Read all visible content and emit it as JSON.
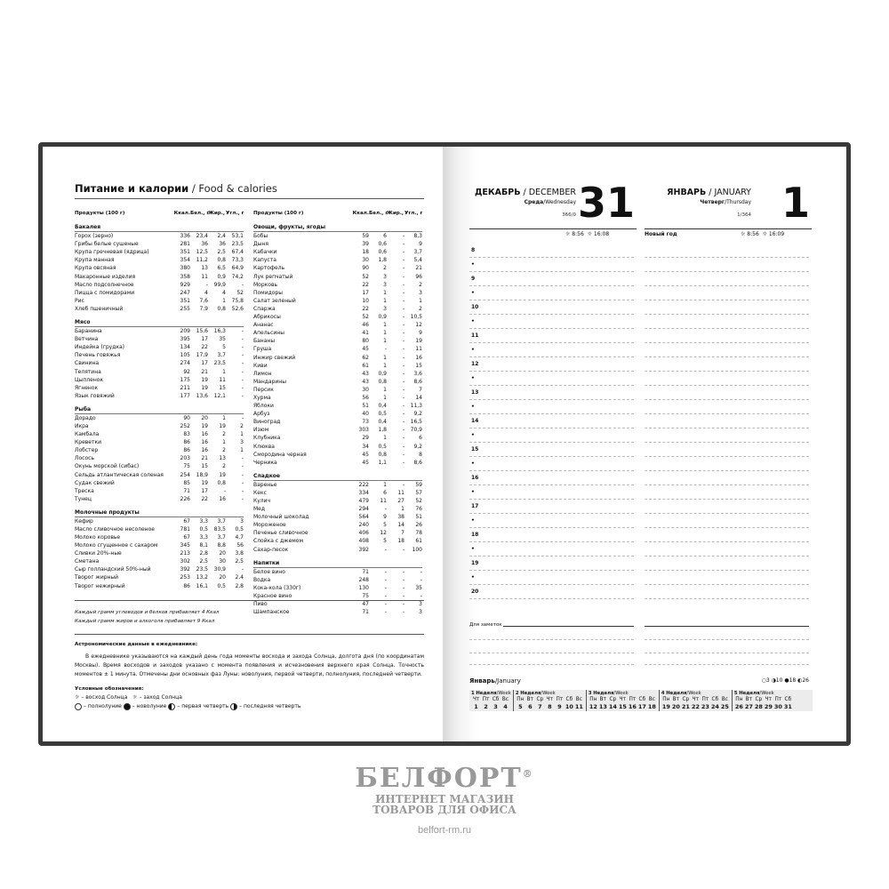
{
  "left": {
    "title_ru": "Питание и калории",
    "title_en": "/ Food & calories",
    "headers": [
      "Продукты (100 г)",
      "Ккал.",
      "Бел., г",
      "Жир., г",
      "Угл., г"
    ],
    "col1": [
      {
        "name": "Бакалея",
        "rows": [
          [
            "Горох (зерно)",
            "336",
            "23,4",
            "2,4",
            "53,1"
          ],
          [
            "Грибы белые сушеные",
            "281",
            "36",
            "36",
            "23,5"
          ],
          [
            "Крупа гречневая (ядрица)",
            "351",
            "12,5",
            "2,5",
            "67,4"
          ],
          [
            "Крупа манная",
            "354",
            "11,2",
            "0,8",
            "73,3"
          ],
          [
            "Крупа овсяная",
            "380",
            "13",
            "6,5",
            "64,9"
          ],
          [
            "Макаронные изделия",
            "358",
            "11",
            "0,9",
            "74,2"
          ],
          [
            "Масло подсолнечное",
            "929",
            "-",
            "99,9",
            "-"
          ],
          [
            "Пицца с помидорами",
            "247",
            "4",
            "4",
            "52"
          ],
          [
            "Рис",
            "351",
            "7,6",
            "1",
            "75,8"
          ],
          [
            "Хлеб пшеничный",
            "255",
            "7,9",
            "0,8",
            "52,6"
          ]
        ]
      },
      {
        "name": "Мясо",
        "rows": [
          [
            "Баранина",
            "209",
            "15,6",
            "16,3",
            "-"
          ],
          [
            "Ветчина",
            "395",
            "17",
            "35",
            "-"
          ],
          [
            "Индейка (грудка)",
            "134",
            "22",
            "5",
            "-"
          ],
          [
            "Печень говяжья",
            "105",
            "17,9",
            "3,7",
            "-"
          ],
          [
            "Свинина",
            "274",
            "17",
            "23,5",
            "-"
          ],
          [
            "Телятина",
            "92",
            "21",
            "1",
            "-"
          ],
          [
            "Цыпленок",
            "175",
            "19",
            "11",
            "-"
          ],
          [
            "Ягненок",
            "211",
            "19",
            "15",
            "-"
          ],
          [
            "Язык говяжий",
            "177",
            "13,6",
            "12,1",
            "-"
          ]
        ]
      },
      {
        "name": "Рыба",
        "rows": [
          [
            "Дорадо",
            "90",
            "20",
            "1",
            "-"
          ],
          [
            "Икра",
            "252",
            "19",
            "19",
            "2"
          ],
          [
            "Камбала",
            "83",
            "16",
            "2",
            "1"
          ],
          [
            "Креветки",
            "86",
            "16",
            "1",
            "3"
          ],
          [
            "Лобстер",
            "86",
            "16",
            "2",
            "1"
          ],
          [
            "Лосось",
            "203",
            "21",
            "13",
            "-"
          ],
          [
            "Окунь морской (сибас)",
            "75",
            "15",
            "2",
            "-"
          ],
          [
            "Сельдь атлантическая соленая",
            "254",
            "18,9",
            "19",
            "-"
          ],
          [
            "Судак свежий",
            "85",
            "19",
            "0,8",
            "-"
          ],
          [
            "Треска",
            "71",
            "17",
            "-",
            "-"
          ],
          [
            "Тунец",
            "226",
            "22",
            "16",
            "-"
          ]
        ]
      },
      {
        "name": "Молочные продукты",
        "rows": [
          [
            "Кефир",
            "67",
            "3,3",
            "3,7",
            "3"
          ],
          [
            "Масло сливочное несоленое",
            "781",
            "0,5",
            "83,5",
            "0,5"
          ],
          [
            "Молоко коровье",
            "67",
            "3,3",
            "3,7",
            "4,7"
          ],
          [
            "Молоко сгущенное с сахаром",
            "345",
            "8,1",
            "8,8",
            "56"
          ],
          [
            "Сливки 20%-ные",
            "213",
            "2,8",
            "20",
            "3,8"
          ],
          [
            "Сметана",
            "302",
            "2,5",
            "30",
            "2,5"
          ],
          [
            "Сыр голландский 50%-ный",
            "392",
            "23,5",
            "30,9",
            "-"
          ],
          [
            "Творог жирный",
            "253",
            "13,2",
            "20",
            "2,4"
          ],
          [
            "Творог нежирный",
            "86",
            "16,1",
            "0,5",
            "2,8"
          ]
        ]
      }
    ],
    "col2": [
      {
        "name": "Овощи, фрукты, ягоды",
        "rows": [
          [
            "Бобы",
            "59",
            "6",
            "-",
            "8,3"
          ],
          [
            "Дыня",
            "39",
            "0,6",
            "-",
            "9"
          ],
          [
            "Кабачки",
            "18",
            "0,6",
            "-",
            "3,7"
          ],
          [
            "Капуста",
            "30",
            "1,8",
            "-",
            "5,4"
          ],
          [
            "Картофель",
            "90",
            "2",
            "-",
            "21"
          ],
          [
            "Лук репчатый",
            "52",
            "3",
            "-",
            "96"
          ],
          [
            "Морковь",
            "22",
            "3",
            "-",
            "2"
          ],
          [
            "Помидоры",
            "17",
            "1",
            "-",
            "3"
          ],
          [
            "Салат зеленый",
            "10",
            "1",
            "-",
            "1"
          ],
          [
            "Спаржа",
            "22",
            "3",
            "-",
            "2"
          ],
          [
            "Абрикосы",
            "52",
            "0,9",
            "-",
            "10,5"
          ],
          [
            "Ананас",
            "46",
            "1",
            "-",
            "12"
          ],
          [
            "Апельсины",
            "41",
            "1",
            "-",
            "9"
          ],
          [
            "Бананы",
            "80",
            "1",
            "-",
            "19"
          ],
          [
            "Груша",
            "45",
            "-",
            "-",
            "11"
          ],
          [
            "Инжир свежий",
            "62",
            "1",
            "-",
            "16"
          ],
          [
            "Киви",
            "61",
            "1",
            "-",
            "15"
          ],
          [
            "Лимон",
            "43",
            "0,9",
            "-",
            "3,6"
          ],
          [
            "Мандарины",
            "43",
            "0,8",
            "-",
            "8,6"
          ],
          [
            "Персик",
            "30",
            "1",
            "-",
            "7"
          ],
          [
            "Хурма",
            "56",
            "1",
            "-",
            "14"
          ],
          [
            "Яблоки",
            "51",
            "0,4",
            "-",
            "11,3"
          ],
          [
            "Арбуз",
            "40",
            "0,5",
            "-",
            "9,2"
          ],
          [
            "Виноград",
            "73",
            "0,4",
            "-",
            "16,5"
          ],
          [
            "Изюм",
            "303",
            "1,8",
            "-",
            "70,9"
          ],
          [
            "Клубника",
            "29",
            "1",
            "-",
            "6"
          ],
          [
            "Клюква",
            "34",
            "0,5",
            "-",
            "9,2"
          ],
          [
            "Смородина черная",
            "45",
            "0,8",
            "-",
            "8"
          ],
          [
            "Черника",
            "45",
            "1,1",
            "-",
            "8,6"
          ]
        ]
      },
      {
        "name": "Сладкое",
        "rows": [
          [
            "Варенье",
            "222",
            "1",
            "-",
            "59"
          ],
          [
            "Кекс",
            "334",
            "6",
            "11",
            "57"
          ],
          [
            "Кулич",
            "479",
            "11",
            "27",
            "52"
          ],
          [
            "Мед",
            "294",
            "-",
            "1",
            "76"
          ],
          [
            "Молочный шоколад",
            "564",
            "9",
            "38",
            "51"
          ],
          [
            "Мороженое",
            "240",
            "5",
            "14",
            "26"
          ],
          [
            "Печенье сливочное",
            "406",
            "12",
            "7",
            "78"
          ],
          [
            "Слойка с джемом",
            "408",
            "5",
            "18",
            "61"
          ],
          [
            "Сахар-песок",
            "392",
            "-",
            "-",
            "100"
          ]
        ]
      },
      {
        "name": "Напитки",
        "rows": [
          [
            "Белое вино",
            "71",
            "-",
            "-",
            "-"
          ],
          [
            "Водка",
            "248",
            "-",
            "-",
            "-"
          ],
          [
            "Кока-кола (330г)",
            "130",
            "-",
            "-",
            "35"
          ],
          [
            "Красное вино",
            "75",
            "-",
            "-",
            "-"
          ],
          [
            "Пиво",
            "47",
            "-",
            "-",
            "3"
          ],
          [
            "Шампанское",
            "71",
            "-",
            "-",
            "3"
          ]
        ]
      }
    ],
    "foot1": "Каждый грамм углеводов и белков прибавляет 4 Ккал",
    "foot2": "Каждый грамм жиров и алкоголя прибавляет 9 Ккал",
    "astro_title": "Астрономические данные в ежедневнике:",
    "astro_text": "В ежедневнике указываются на каждый день года моменты восхода и захода Солнца, долгота дня (по координатам Москвы). Время восходов и заходов указано с момента появления и исчезновения верхнего края Солнца. Точность моментов ± 1 минута. Отмечены дни основных фаз Луны: новолуния, первой четверти, полнолуния, последней четверти.",
    "legend_title": "Условные обозначения:",
    "sunrise": "– восход Солнца",
    "sunset": "– заход Солнца",
    "full": "– полнолуние",
    "new": "– новолуние",
    "first": "– первая четверть",
    "last": "– последняя четверть"
  },
  "right": {
    "day1": {
      "month_ru": "ДЕКАБРЬ",
      "month_en": "/ DECEMBER",
      "wd_ru": "Среда",
      "wd_en": "/Wednesday",
      "count": "366/0",
      "num": "31",
      "sunrise": "8:56",
      "sunset": "16:08",
      "holiday": ""
    },
    "day2": {
      "month_ru": "ЯНВАРЬ",
      "month_en": "/ JANUARY",
      "wd_ru": "Четверг",
      "wd_en": "/Thursday",
      "count": "1/364",
      "num": "1",
      "sunrise": "8:56",
      "sunset": "16:09",
      "holiday": "Новый год"
    },
    "hours": [
      "8",
      "9",
      "10",
      "11",
      "12",
      "13",
      "14",
      "15",
      "16",
      "17",
      "18",
      "19",
      "20"
    ],
    "notes": "Для заметок",
    "cal_ru": "Январь",
    "cal_en": "/January",
    "phases": "○3 ◑10 ●18 ◐26",
    "week_label": "Неделя",
    "week_en": "/Week",
    "weeks": [
      {
        "n": "1",
        "days": [
          [
            "Чт",
            "1"
          ],
          [
            "Пт",
            "2"
          ],
          [
            "Сб",
            "3"
          ],
          [
            "Вс",
            "4"
          ]
        ]
      },
      {
        "n": "2",
        "days": [
          [
            "Пн",
            "5"
          ],
          [
            "Вт",
            "6"
          ],
          [
            "Ср",
            "7"
          ],
          [
            "Чт",
            "8"
          ],
          [
            "Пт",
            "9"
          ],
          [
            "Сб",
            "10"
          ],
          [
            "Вс",
            "11"
          ]
        ]
      },
      {
        "n": "3",
        "days": [
          [
            "Пн",
            "12"
          ],
          [
            "Вт",
            "13"
          ],
          [
            "Ср",
            "14"
          ],
          [
            "Чт",
            "15"
          ],
          [
            "Пт",
            "16"
          ],
          [
            "Сб",
            "17"
          ],
          [
            "Вс",
            "18"
          ]
        ]
      },
      {
        "n": "4",
        "days": [
          [
            "Пн",
            "19"
          ],
          [
            "Вт",
            "20"
          ],
          [
            "Ср",
            "21"
          ],
          [
            "Чт",
            "22"
          ],
          [
            "Пт",
            "23"
          ],
          [
            "Сб",
            "24"
          ],
          [
            "Вс",
            "25"
          ]
        ]
      },
      {
        "n": "5",
        "days": [
          [
            "Пн",
            "26"
          ],
          [
            "Вт",
            "27"
          ],
          [
            "Ср",
            "28"
          ],
          [
            "Чт",
            "29"
          ],
          [
            "Пт",
            "30"
          ],
          [
            "Сб",
            "31"
          ]
        ]
      }
    ]
  },
  "brand": {
    "name": "БЕЛФОРТ",
    "reg": "®",
    "line1": "ИНТЕРНЕТ МАГАЗИН",
    "line2": "ТОВАРОВ ДЛЯ ОФИСА",
    "url": "belfort-rm.ru"
  }
}
